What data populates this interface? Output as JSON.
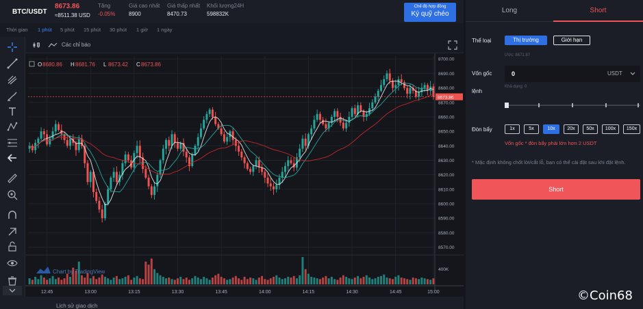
{
  "ticker": {
    "pair": "BTC/USDT",
    "price": "8673.86",
    "price_usd": "≈8511.38 USD",
    "change_label": "Tăng",
    "change_value": "-0.05%",
    "high_label": "Giá cao nhất",
    "high_value": "8900",
    "low_label": "Giá thấp nhất",
    "low_value": "8470.73",
    "volume_label": "Khối lượng24H",
    "volume_value": "598832K",
    "margin_button_small": "Chế độ hợp đồng",
    "margin_button_big": "Ký quỹ chéo"
  },
  "timeframes": {
    "label": "Thời gian",
    "items": [
      "1 phút",
      "5 phút",
      "15 phút",
      "30 phút",
      "1 giờ",
      "1 ngày"
    ],
    "active": "1 phút"
  },
  "chart_header": {
    "indicators_label": "Các chỉ báo"
  },
  "colors": {
    "up": "#26a69a",
    "down": "#ef5350",
    "ma_fast": "#e6e6e6",
    "ma_mid": "#26a69a",
    "ma_slow": "#c62828",
    "accent": "#2f6fe4",
    "short": "#f0555a"
  },
  "chart_data": {
    "type": "candlestick",
    "ohlc_label": {
      "o": "O",
      "h": "H",
      "l": "L",
      "c": "C"
    },
    "ohlc": {
      "o": "8680.86",
      "h": "8681.76",
      "l": "8673.42",
      "c": "8673.86"
    },
    "current_price_tag": "8673.86",
    "y_ticks": [
      "8700.00",
      "8690.00",
      "8680.00",
      "8670.00",
      "8660.00",
      "8650.00",
      "8640.00",
      "8630.00",
      "8620.00",
      "8610.00",
      "8600.00",
      "8590.00",
      "8580.00",
      "8570.00"
    ],
    "ylim": [
      8566,
      8702
    ],
    "volume_tick": "400K",
    "x_ticks": [
      "12:45",
      "13:00",
      "13:15",
      "13:30",
      "13:45",
      "14:00",
      "14:15",
      "14:30",
      "14:45",
      "15:00"
    ],
    "watermark": "Chart by TradingView",
    "closes": [
      8640,
      8637,
      8642,
      8645,
      8650,
      8648,
      8641,
      8645,
      8650,
      8655,
      8651,
      8648,
      8644,
      8640,
      8645,
      8642,
      8637,
      8645,
      8640,
      8628,
      8615,
      8622,
      8608,
      8602,
      8596,
      8590,
      8600,
      8610,
      8618,
      8622,
      8615,
      8620,
      8628,
      8634,
      8630,
      8625,
      8635,
      8640,
      8632,
      8624,
      8618,
      8612,
      8606,
      8612,
      8620,
      8630,
      8638,
      8644,
      8640,
      8648,
      8642,
      8638,
      8642,
      8636,
      8632,
      8626,
      8634,
      8640,
      8646,
      8652,
      8658,
      8662,
      8665,
      8660,
      8655,
      8652,
      8648,
      8643,
      8646,
      8650,
      8644,
      8640,
      8636,
      8632,
      8628,
      8624,
      8622,
      8626,
      8630,
      8625,
      8622,
      8618,
      8614,
      8612,
      8610,
      8613,
      8618,
      8622,
      8626,
      8630,
      8628,
      8625,
      8632,
      8638,
      8645,
      8640,
      8648,
      8652,
      8658,
      8662,
      8658,
      8655,
      8652,
      8656,
      8660,
      8664,
      8660,
      8656,
      8652,
      8656,
      8660,
      8666,
      8662,
      8668,
      8664,
      8660,
      8662,
      8666,
      8670,
      8674,
      8678,
      8682,
      8686,
      8690,
      8685,
      8680,
      8682,
      8686,
      8684,
      8680,
      8676,
      8680,
      8678,
      8674,
      8677,
      8680,
      8682,
      8678,
      8681,
      8673.86
    ],
    "volumes": [
      8,
      6,
      10,
      7,
      12,
      9,
      6,
      8,
      11,
      7,
      9,
      6,
      8,
      14,
      10,
      22,
      18,
      30,
      12,
      9,
      15,
      8,
      11,
      7,
      9,
      13,
      10,
      8,
      6,
      9,
      11,
      7,
      8,
      10,
      12,
      6,
      9,
      11,
      8,
      7,
      30,
      26,
      34,
      20,
      15,
      12,
      10,
      8,
      9,
      7,
      6,
      8,
      10,
      7,
      9,
      6,
      8,
      11,
      9,
      7,
      10,
      8,
      6,
      9,
      12,
      14,
      10,
      8,
      6,
      7,
      9,
      11,
      8,
      6,
      10,
      7,
      9,
      8,
      6,
      9,
      11,
      7,
      6,
      8,
      10,
      12,
      9,
      7,
      8,
      10,
      9,
      11,
      8,
      12,
      36,
      20,
      14,
      10,
      9,
      8,
      7,
      9,
      11,
      8,
      10,
      7,
      6,
      9,
      12,
      10,
      8,
      7,
      9,
      11,
      8,
      10,
      12,
      9,
      7,
      8,
      10,
      11,
      13,
      9,
      8,
      7,
      10,
      12,
      9,
      8,
      7,
      6,
      9,
      8,
      7,
      9,
      8,
      7,
      6,
      8
    ]
  },
  "panel": {
    "tab_long": "Long",
    "tab_short": "Short",
    "order_type_label": "Thể loại",
    "btn_market": "Thị trường",
    "btn_limit": "Giới hạn",
    "price_hint": "Ước:  8671.87",
    "volume_label_1": "Vốn gốc",
    "volume_label_2": "lệnh",
    "volume_value": "0",
    "volume_unit": "USDT",
    "available": "Khả dụng: 0",
    "leverage_label": "Đòn bẩy",
    "leverages": [
      "1x",
      "5x",
      "10x",
      "20x",
      "50x",
      "100x",
      "150x"
    ],
    "leverage_active": "10x",
    "warning": "Vốn gốc * đòn bẩy phải lớn hơn 2 USDT",
    "note": "* Mặc định không chốt lời/cắt lỗ, bạn có thể cài đặt sau khi đặt lệnh.",
    "short_button": "Short"
  },
  "bottom": {
    "history": "Lịch sử giao dịch"
  },
  "watermark": "©Coin68"
}
